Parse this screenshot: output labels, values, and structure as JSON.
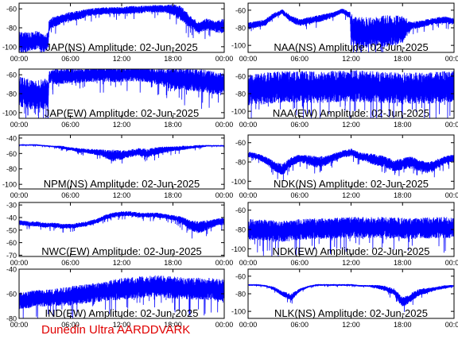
{
  "footer_text": "Dunedin Ultra AARDDVARK",
  "colors": {
    "trace": "#0000ff",
    "axes": "#000000",
    "footer": "#e00000"
  },
  "chart_data": [
    {
      "type": "line",
      "title": "JAP(NS) Amplitude: 02-Jun-2025",
      "x_ticks": [
        "00:00",
        "06:00",
        "12:00",
        "18:00",
        "00:00"
      ],
      "y_ticks": [
        -100,
        -80,
        -60
      ],
      "ylim": [
        -106,
        -54
      ],
      "xlim_hours": [
        0,
        24
      ],
      "series": [
        {
          "x": [
            0,
            1,
            2,
            3,
            3.4,
            3.5,
            4,
            5,
            6,
            7,
            8,
            9,
            10,
            11,
            12,
            13,
            14,
            15,
            16,
            17,
            18,
            19,
            20,
            21,
            22,
            23,
            24
          ],
          "y": [
            -94,
            -95,
            -93,
            -96,
            -94,
            -78,
            -74,
            -71,
            -68,
            -67,
            -64,
            -63,
            -62,
            -62,
            -62,
            -61,
            -61,
            -60,
            -60,
            -60,
            -61,
            -65,
            -74,
            -80,
            -76,
            -79,
            -78
          ],
          "noise": [
            10,
            10,
            10,
            10,
            9,
            6,
            6,
            5,
            5,
            5,
            4,
            4,
            4,
            4,
            4,
            4,
            4,
            4,
            4,
            4,
            6,
            8,
            7,
            6,
            6,
            6,
            8
          ]
        }
      ]
    },
    {
      "type": "line",
      "title": "NAA(NS) Amplitude: 02-Jun-2025",
      "x_ticks": [
        "00:00",
        "06:00",
        "12:00",
        "18:00",
        "00:00"
      ],
      "y_ticks": [
        -100,
        -80,
        -60
      ],
      "ylim": [
        -108,
        -52
      ],
      "xlim_hours": [
        0,
        24
      ],
      "series": [
        {
          "x": [
            0,
            1,
            2,
            3,
            4,
            5,
            6,
            7,
            8,
            9,
            10,
            11,
            11.9,
            12,
            13,
            14,
            15,
            16,
            17,
            18,
            19,
            20,
            21,
            22,
            23,
            24
          ],
          "y": [
            -78,
            -76,
            -74,
            -66,
            -62,
            -70,
            -74,
            -72,
            -70,
            -68,
            -65,
            -61,
            -66,
            -82,
            -86,
            -85,
            -84,
            -84,
            -83,
            -82,
            -78,
            -76,
            -74,
            -72,
            -71,
            -73
          ],
          "noise": [
            4,
            4,
            4,
            3,
            3,
            4,
            4,
            4,
            4,
            4,
            3,
            3,
            4,
            18,
            18,
            18,
            18,
            18,
            18,
            16,
            5,
            4,
            4,
            4,
            4,
            4
          ]
        }
      ]
    },
    {
      "type": "line",
      "title": "JAP(EW) Amplitude: 02-Jun-2025",
      "x_ticks": [
        "00:00",
        "06:00",
        "12:00",
        "18:00",
        "00:00"
      ],
      "y_ticks": [
        -100,
        -80,
        -60
      ],
      "ylim": [
        -106,
        -54
      ],
      "xlim_hours": [
        0,
        24
      ],
      "series": [
        {
          "x": [
            0,
            1,
            2,
            3,
            3.4,
            3.5,
            4,
            5,
            6,
            7,
            8,
            9,
            10,
            11,
            12,
            13,
            14,
            15,
            16,
            17,
            18,
            19,
            20,
            21,
            22,
            23,
            24
          ],
          "y": [
            -78,
            -80,
            -82,
            -80,
            -82,
            -62,
            -62,
            -62,
            -61,
            -61,
            -60,
            -60,
            -59,
            -60,
            -60,
            -59,
            -59,
            -60,
            -62,
            -63,
            -64,
            -64,
            -65,
            -66,
            -67,
            -69,
            -70
          ],
          "noise": [
            16,
            16,
            16,
            16,
            15,
            6,
            8,
            8,
            8,
            8,
            8,
            8,
            8,
            8,
            8,
            8,
            8,
            8,
            8,
            10,
            12,
            12,
            12,
            12,
            12,
            12,
            12
          ]
        }
      ]
    },
    {
      "type": "line",
      "title": "NAA(EW) Amplitude: 02-Jun-2025",
      "x_ticks": [
        "00:00",
        "06:00",
        "12:00",
        "18:00",
        "00:00"
      ],
      "y_ticks": [
        -100,
        -80,
        -60
      ],
      "ylim": [
        -108,
        -52
      ],
      "xlim_hours": [
        0,
        24
      ],
      "series": [
        {
          "x": [
            0,
            2,
            4,
            6,
            8,
            10,
            12,
            14,
            16,
            18,
            20,
            22,
            24
          ],
          "y": [
            -76,
            -74,
            -72,
            -72,
            -73,
            -72,
            -71,
            -72,
            -73,
            -74,
            -74,
            -73,
            -72
          ],
          "noise": [
            18,
            18,
            18,
            18,
            18,
            18,
            18,
            18,
            18,
            18,
            18,
            18,
            18
          ]
        }
      ]
    },
    {
      "type": "line",
      "title": "NPM(NS) Amplitude: 02-Jun-2025",
      "x_ticks": [
        "00:00",
        "06:00",
        "12:00",
        "18:00",
        "00:00"
      ],
      "y_ticks": [
        -100,
        -80,
        -60,
        -40
      ],
      "ylim": [
        -106,
        -36
      ],
      "xlim_hours": [
        0,
        24
      ],
      "series": [
        {
          "x": [
            0,
            1,
            2,
            3,
            4,
            5,
            6,
            7,
            8,
            9,
            10,
            11,
            12,
            13,
            14,
            15,
            16,
            17,
            18,
            19,
            20,
            21,
            22,
            23,
            24
          ],
          "y": [
            -49,
            -49,
            -49,
            -50,
            -51,
            -52,
            -54,
            -56,
            -57,
            -58,
            -60,
            -63,
            -62,
            -60,
            -58,
            -60,
            -57,
            -55,
            -54,
            -53,
            -52,
            -51,
            -50,
            -50,
            -50
          ],
          "noise": [
            1,
            1,
            1,
            1,
            1,
            2,
            2,
            3,
            3,
            4,
            5,
            8,
            6,
            5,
            5,
            6,
            5,
            4,
            3,
            3,
            2,
            2,
            1,
            1,
            1
          ]
        }
      ]
    },
    {
      "type": "line",
      "title": "NDK(NS) Amplitude: 02-Jun-2025",
      "x_ticks": [
        "00:00",
        "06:00",
        "12:00",
        "18:00",
        "00:00"
      ],
      "y_ticks": [
        -100,
        -80,
        -60
      ],
      "ylim": [
        -108,
        -52
      ],
      "xlim_hours": [
        0,
        24
      ],
      "series": [
        {
          "x": [
            0,
            1,
            2,
            3,
            4,
            5,
            6,
            7,
            8,
            9,
            10,
            11,
            12,
            13,
            14,
            15,
            16,
            17,
            18,
            19,
            20,
            21,
            22,
            23,
            24
          ],
          "y": [
            -72,
            -74,
            -78,
            -84,
            -88,
            -80,
            -76,
            -78,
            -80,
            -79,
            -75,
            -72,
            -70,
            -74,
            -76,
            -78,
            -80,
            -84,
            -82,
            -80,
            -84,
            -86,
            -82,
            -78,
            -76
          ],
          "noise": [
            3,
            3,
            4,
            5,
            6,
            5,
            4,
            5,
            6,
            5,
            4,
            4,
            4,
            4,
            5,
            6,
            6,
            6,
            6,
            6,
            6,
            6,
            5,
            4,
            4
          ]
        }
      ]
    },
    {
      "type": "line",
      "title": "NWC(EW) Amplitude: 02-Jun-2025",
      "x_ticks": [
        "00:00",
        "06:00",
        "12:00",
        "18:00",
        "00:00"
      ],
      "y_ticks": [
        -70,
        -60,
        -50,
        -40,
        -30
      ],
      "ylim": [
        -71,
        -28
      ],
      "xlim_hours": [
        0,
        24
      ],
      "series": [
        {
          "x": [
            0,
            1,
            2,
            3,
            4,
            5,
            6,
            7,
            8,
            9,
            10,
            11,
            12,
            13,
            14,
            15,
            16,
            17,
            18,
            19,
            20,
            21,
            22,
            23,
            24
          ],
          "y": [
            -44,
            -45,
            -45,
            -46,
            -46,
            -47,
            -47,
            -46,
            -45,
            -43,
            -40,
            -38,
            -37,
            -37,
            -38,
            -38,
            -38,
            -39,
            -40,
            -42,
            -46,
            -48,
            -46,
            -44,
            -43
          ],
          "noise": [
            2,
            2,
            2,
            2,
            2,
            2,
            2,
            2,
            2,
            2,
            2,
            2,
            2,
            2,
            2,
            2,
            2,
            2,
            2,
            3,
            4,
            5,
            4,
            3,
            3
          ]
        }
      ]
    },
    {
      "type": "line",
      "title": "NDK(EW) Amplitude: 02-Jun-2025",
      "x_ticks": [
        "00:00",
        "06:00",
        "12:00",
        "18:00",
        "00:00"
      ],
      "y_ticks": [
        -100,
        -80,
        -60
      ],
      "ylim": [
        -108,
        -52
      ],
      "xlim_hours": [
        0,
        24
      ],
      "series": [
        {
          "x": [
            0,
            2,
            4,
            6,
            8,
            10,
            12,
            14,
            16,
            18,
            20,
            22,
            24
          ],
          "y": [
            -80,
            -81,
            -82,
            -80,
            -79,
            -79,
            -78,
            -78,
            -78,
            -79,
            -79,
            -78,
            -78
          ],
          "noise": [
            11,
            11,
            11,
            11,
            11,
            11,
            11,
            11,
            11,
            11,
            11,
            11,
            11
          ]
        }
      ]
    },
    {
      "type": "line",
      "title": "IND(EW) Amplitude: 02-Jun-2025",
      "x_ticks": [
        "00:00",
        "06:00",
        "12:00",
        "18:00",
        "00:00"
      ],
      "y_ticks": [
        -80,
        -60,
        -40
      ],
      "ylim": [
        -80,
        -40
      ],
      "xlim_hours": [
        0,
        24
      ],
      "series": [
        {
          "x": [
            0,
            2,
            4,
            6,
            8,
            10,
            12,
            14,
            16,
            18,
            20,
            22,
            24
          ],
          "y": [
            -66,
            -64,
            -63,
            -62,
            -60,
            -58,
            -56,
            -55,
            -54,
            -55,
            -56,
            -56,
            -57
          ],
          "noise": [
            7,
            7,
            7,
            8,
            8,
            8,
            9,
            9,
            9,
            9,
            9,
            9,
            9
          ]
        }
      ]
    },
    {
      "type": "line",
      "title": "NLK(NS) Amplitude: 02-Jun-2025",
      "x_ticks": [
        "00:00",
        "06:00",
        "12:00",
        "18:00",
        "00:00"
      ],
      "y_ticks": [
        -100,
        -80,
        -60
      ],
      "ylim": [
        -108,
        -52
      ],
      "xlim_hours": [
        0,
        24
      ],
      "series": [
        {
          "x": [
            0,
            1,
            2,
            3,
            4,
            5,
            6,
            7,
            8,
            9,
            10,
            11,
            12,
            13,
            14,
            15,
            16,
            17,
            18,
            19,
            20,
            21,
            22,
            23,
            24
          ],
          "y": [
            -70,
            -70,
            -71,
            -74,
            -80,
            -84,
            -76,
            -72,
            -70,
            -70,
            -70,
            -70,
            -70,
            -71,
            -71,
            -72,
            -74,
            -78,
            -90,
            -84,
            -78,
            -76,
            -74,
            -72,
            -71
          ],
          "noise": [
            1,
            1,
            1,
            2,
            3,
            4,
            2,
            1,
            1,
            1,
            1,
            1,
            1,
            1,
            1,
            2,
            3,
            4,
            6,
            5,
            4,
            3,
            2,
            2,
            1
          ]
        }
      ]
    }
  ]
}
